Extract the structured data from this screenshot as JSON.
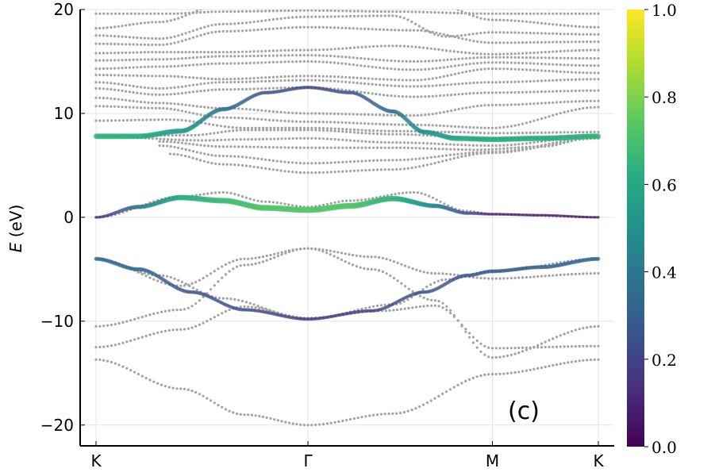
{
  "chart_data": {
    "type": "scatter",
    "title": "",
    "ylabel_italic": "E",
    "ylabel_unit": " (eV)",
    "ylim": [
      -22,
      20
    ],
    "yticks": [
      -20,
      -10,
      0,
      10,
      20
    ],
    "ytick_labels": [
      "−20",
      "−10",
      "0",
      "10",
      "20"
    ],
    "xlim": [
      0,
      2.37
    ],
    "xticks": [
      {
        "pos": 0,
        "label": "K"
      },
      {
        "pos": 1.0,
        "label": "Γ"
      },
      {
        "pos": 1.87,
        "label": "M"
      },
      {
        "pos": 2.37,
        "label": "K"
      }
    ],
    "grid": true,
    "annotation": "(c)",
    "colorbar": {
      "range": [
        0,
        1
      ],
      "ticks": [
        "0.0",
        "0.2",
        "0.4",
        "0.6",
        "0.8",
        "1.0"
      ],
      "colormap": "viridis"
    },
    "gray_color": "#a3a3a3",
    "series": [
      {
        "y": [
          [
            0,
            19.6
          ],
          [
            0.35,
            19.6
          ],
          [
            0.6,
            19.8
          ],
          [
            1.0,
            19.9
          ],
          [
            1.4,
            19.8
          ],
          [
            1.87,
            19.6
          ],
          [
            2.37,
            19.6
          ]
        ]
      },
      {
        "y": [
          [
            0,
            18.2
          ],
          [
            0.3,
            18.8
          ],
          [
            0.6,
            20.5
          ],
          [
            1.0,
            21
          ],
          [
            1.6,
            20.5
          ],
          [
            1.87,
            19.0
          ],
          [
            2.37,
            18.3
          ]
        ]
      },
      {
        "y": [
          [
            0,
            17.5
          ],
          [
            0.3,
            17.2
          ],
          [
            0.6,
            18.6
          ],
          [
            1.0,
            19.3
          ],
          [
            1.4,
            19.4
          ],
          [
            1.65,
            17.4
          ],
          [
            1.87,
            17.8
          ],
          [
            2.37,
            17.6
          ]
        ]
      },
      {
        "y": [
          [
            0,
            16.7
          ],
          [
            0.3,
            16.6
          ],
          [
            0.6,
            17.9
          ],
          [
            1.0,
            18.3
          ],
          [
            1.5,
            18.0
          ],
          [
            1.87,
            16.8
          ],
          [
            2.37,
            16.9
          ]
        ]
      },
      {
        "y": [
          [
            0,
            15.8
          ],
          [
            0.3,
            15.9
          ],
          [
            0.6,
            15.9
          ],
          [
            1.0,
            16.1
          ],
          [
            1.4,
            16.5
          ],
          [
            1.87,
            15.7
          ],
          [
            2.37,
            16.1
          ]
        ]
      },
      {
        "y": [
          [
            0,
            15.1
          ],
          [
            0.3,
            15.2
          ],
          [
            0.6,
            15.5
          ],
          [
            1.0,
            15.6
          ],
          [
            1.5,
            15.0
          ],
          [
            1.87,
            15.4
          ],
          [
            2.37,
            15.3
          ]
        ]
      },
      {
        "y": [
          [
            0,
            14.3
          ],
          [
            0.3,
            14.5
          ],
          [
            0.6,
            14.8
          ],
          [
            1.0,
            15.0
          ],
          [
            1.5,
            14.2
          ],
          [
            1.87,
            14.9
          ],
          [
            2.37,
            14.6
          ]
        ]
      },
      {
        "y": [
          [
            0,
            13.7
          ],
          [
            0.3,
            13.6
          ],
          [
            0.6,
            13.3
          ],
          [
            1.0,
            13.6
          ],
          [
            1.5,
            13.2
          ],
          [
            1.87,
            14.3
          ],
          [
            2.37,
            13.9
          ]
        ]
      },
      {
        "y": [
          [
            0,
            13.0
          ],
          [
            0.3,
            12.4
          ],
          [
            0.6,
            13.0
          ],
          [
            1.0,
            13.2
          ],
          [
            1.5,
            12.6
          ],
          [
            1.87,
            13.0
          ],
          [
            2.37,
            13.3
          ]
        ]
      },
      {
        "y": [
          [
            0,
            12.4
          ],
          [
            0.3,
            11.8
          ],
          [
            0.6,
            12.3
          ],
          [
            1.0,
            12.5
          ],
          [
            1.5,
            11.6
          ],
          [
            1.87,
            12.0
          ],
          [
            2.37,
            12.2
          ]
        ]
      },
      {
        "y": [
          [
            0,
            11.5
          ],
          [
            0.3,
            11.0
          ],
          [
            0.6,
            10.5
          ],
          [
            1.0,
            10.0
          ],
          [
            1.5,
            9.8
          ],
          [
            1.87,
            10.8
          ],
          [
            2.37,
            11.2
          ]
        ]
      },
      {
        "y": [
          [
            0,
            10.7
          ],
          [
            0.3,
            10.5
          ],
          [
            0.6,
            9.6
          ],
          [
            1.0,
            9.2
          ],
          [
            1.5,
            8.9
          ],
          [
            1.87,
            8.6
          ],
          [
            2.37,
            10.6
          ]
        ]
      },
      {
        "y": [
          [
            0,
            9.3
          ],
          [
            0.35,
            9.4
          ],
          [
            0.7,
            8.6
          ],
          [
            1.0,
            8.6
          ],
          [
            1.4,
            8.3
          ],
          [
            1.7,
            8.2
          ],
          [
            1.87,
            8.1
          ],
          [
            2.37,
            8.2
          ]
        ]
      },
      {
        "y": [
          [
            0,
            7.8
          ],
          [
            0.45,
            7.9
          ],
          [
            0.7,
            8.4
          ],
          [
            1.0,
            8.4
          ],
          [
            1.4,
            8.0
          ],
          [
            1.87,
            7.6
          ],
          [
            2.37,
            7.8
          ]
        ]
      },
      {
        "y": [
          [
            0,
            7.8
          ],
          [
            0.5,
            7.4
          ],
          [
            0.7,
            7.5
          ],
          [
            1.0,
            7.6
          ],
          [
            1.4,
            7.2
          ],
          [
            1.87,
            6.9
          ],
          [
            2.37,
            7.8
          ]
        ]
      },
      {
        "y": [
          [
            0.3,
            7.3
          ],
          [
            0.6,
            6.8
          ],
          [
            1.0,
            6.7
          ],
          [
            1.4,
            6.7
          ],
          [
            1.8,
            6.5
          ],
          [
            2.1,
            6.8
          ],
          [
            2.37,
            7.8
          ]
        ]
      },
      {
        "y": [
          [
            0.3,
            6.9
          ],
          [
            0.6,
            5.9
          ],
          [
            1.0,
            5.2
          ],
          [
            1.4,
            5.5
          ],
          [
            1.87,
            6.3
          ],
          [
            2.37,
            7.7
          ]
        ]
      },
      {
        "y": [
          [
            0.35,
            6.1
          ],
          [
            0.6,
            5.1
          ],
          [
            1.0,
            4.3
          ],
          [
            1.4,
            4.6
          ],
          [
            1.87,
            6.2
          ],
          [
            2.37,
            7.6
          ]
        ]
      },
      {
        "y": [
          [
            0,
            0
          ],
          [
            0.4,
            2.0
          ],
          [
            0.6,
            2.4
          ],
          [
            0.8,
            1.5
          ],
          [
            1.0,
            1.0
          ],
          [
            1.2,
            1.6
          ],
          [
            1.5,
            2.4
          ],
          [
            1.75,
            0.6
          ],
          [
            1.87,
            0.3
          ],
          [
            2.37,
            0
          ]
        ]
      },
      {
        "y": [
          [
            0,
            -4.0
          ],
          [
            0.3,
            -5.6
          ],
          [
            0.6,
            -7.8
          ],
          [
            1.0,
            -9.8
          ],
          [
            1.4,
            -8.4
          ],
          [
            1.65,
            -6.0
          ],
          [
            1.87,
            -5.2
          ],
          [
            2.37,
            -4.0
          ]
        ]
      },
      {
        "y": [
          [
            0,
            -4.0
          ],
          [
            0.4,
            -6.6
          ],
          [
            0.7,
            -4.0
          ],
          [
            1.0,
            -3.0
          ],
          [
            1.3,
            -3.8
          ],
          [
            1.6,
            -5.4
          ],
          [
            1.87,
            -5.9
          ],
          [
            2.37,
            -5.4
          ]
        ]
      },
      {
        "y": [
          [
            0,
            -10.5
          ],
          [
            0.4,
            -8.9
          ],
          [
            0.7,
            -4.6
          ],
          [
            1.0,
            -3.0
          ],
          [
            1.3,
            -5.0
          ],
          [
            1.6,
            -8.0
          ],
          [
            1.87,
            -13.5
          ],
          [
            2.37,
            -10.5
          ]
        ]
      },
      {
        "y": [
          [
            0,
            -12.5
          ],
          [
            0.4,
            -10.8
          ],
          [
            0.7,
            -8.6
          ],
          [
            1.0,
            -9.7
          ],
          [
            1.35,
            -9.0
          ],
          [
            1.6,
            -8.5
          ],
          [
            1.87,
            -12.6
          ],
          [
            2.37,
            -12.4
          ]
        ]
      },
      {
        "y": [
          [
            0,
            -13.7
          ],
          [
            0.4,
            -16.5
          ],
          [
            0.7,
            -19.0
          ],
          [
            1.0,
            -20.0
          ],
          [
            1.4,
            -18.9
          ],
          [
            1.87,
            -15.1
          ],
          [
            2.37,
            -13.7
          ]
        ]
      }
    ],
    "weighted_series": [
      {
        "pts": [
          [
            0,
            7.8
          ],
          [
            0.2,
            7.8
          ],
          [
            0.4,
            8.3
          ],
          [
            0.6,
            10.4
          ],
          [
            0.8,
            12.0
          ],
          [
            1.0,
            12.5
          ],
          [
            1.2,
            12.0
          ],
          [
            1.4,
            10.2
          ],
          [
            1.55,
            8.2
          ],
          [
            1.7,
            7.6
          ],
          [
            1.87,
            7.5
          ],
          [
            2.1,
            7.6
          ],
          [
            2.37,
            7.8
          ]
        ],
        "w": [
          0.65,
          0.64,
          0.55,
          0.38,
          0.25,
          0.22,
          0.25,
          0.35,
          0.5,
          0.6,
          0.62,
          0.63,
          0.65
        ]
      },
      {
        "pts": [
          [
            0,
            0
          ],
          [
            0.2,
            1.0
          ],
          [
            0.4,
            1.9
          ],
          [
            0.6,
            1.6
          ],
          [
            0.8,
            0.9
          ],
          [
            1.0,
            0.7
          ],
          [
            1.2,
            1.1
          ],
          [
            1.4,
            1.8
          ],
          [
            1.6,
            1.1
          ],
          [
            1.75,
            0.4
          ],
          [
            1.87,
            0.3
          ],
          [
            2.1,
            0.2
          ],
          [
            2.37,
            0.0
          ]
        ],
        "w": [
          0.08,
          0.4,
          0.62,
          0.68,
          0.72,
          0.73,
          0.72,
          0.65,
          0.45,
          0.22,
          0.08,
          0.05,
          0.03
        ]
      },
      {
        "pts": [
          [
            0,
            -4.0
          ],
          [
            0.2,
            -5.0
          ],
          [
            0.45,
            -7.2
          ],
          [
            0.7,
            -8.9
          ],
          [
            1.0,
            -9.8
          ],
          [
            1.3,
            -9.0
          ],
          [
            1.55,
            -7.2
          ],
          [
            1.75,
            -5.6
          ],
          [
            1.87,
            -5.2
          ],
          [
            2.1,
            -4.8
          ],
          [
            2.37,
            -4.0
          ]
        ],
        "w": [
          0.35,
          0.33,
          0.27,
          0.22,
          0.18,
          0.2,
          0.24,
          0.28,
          0.3,
          0.32,
          0.34
        ]
      }
    ]
  }
}
